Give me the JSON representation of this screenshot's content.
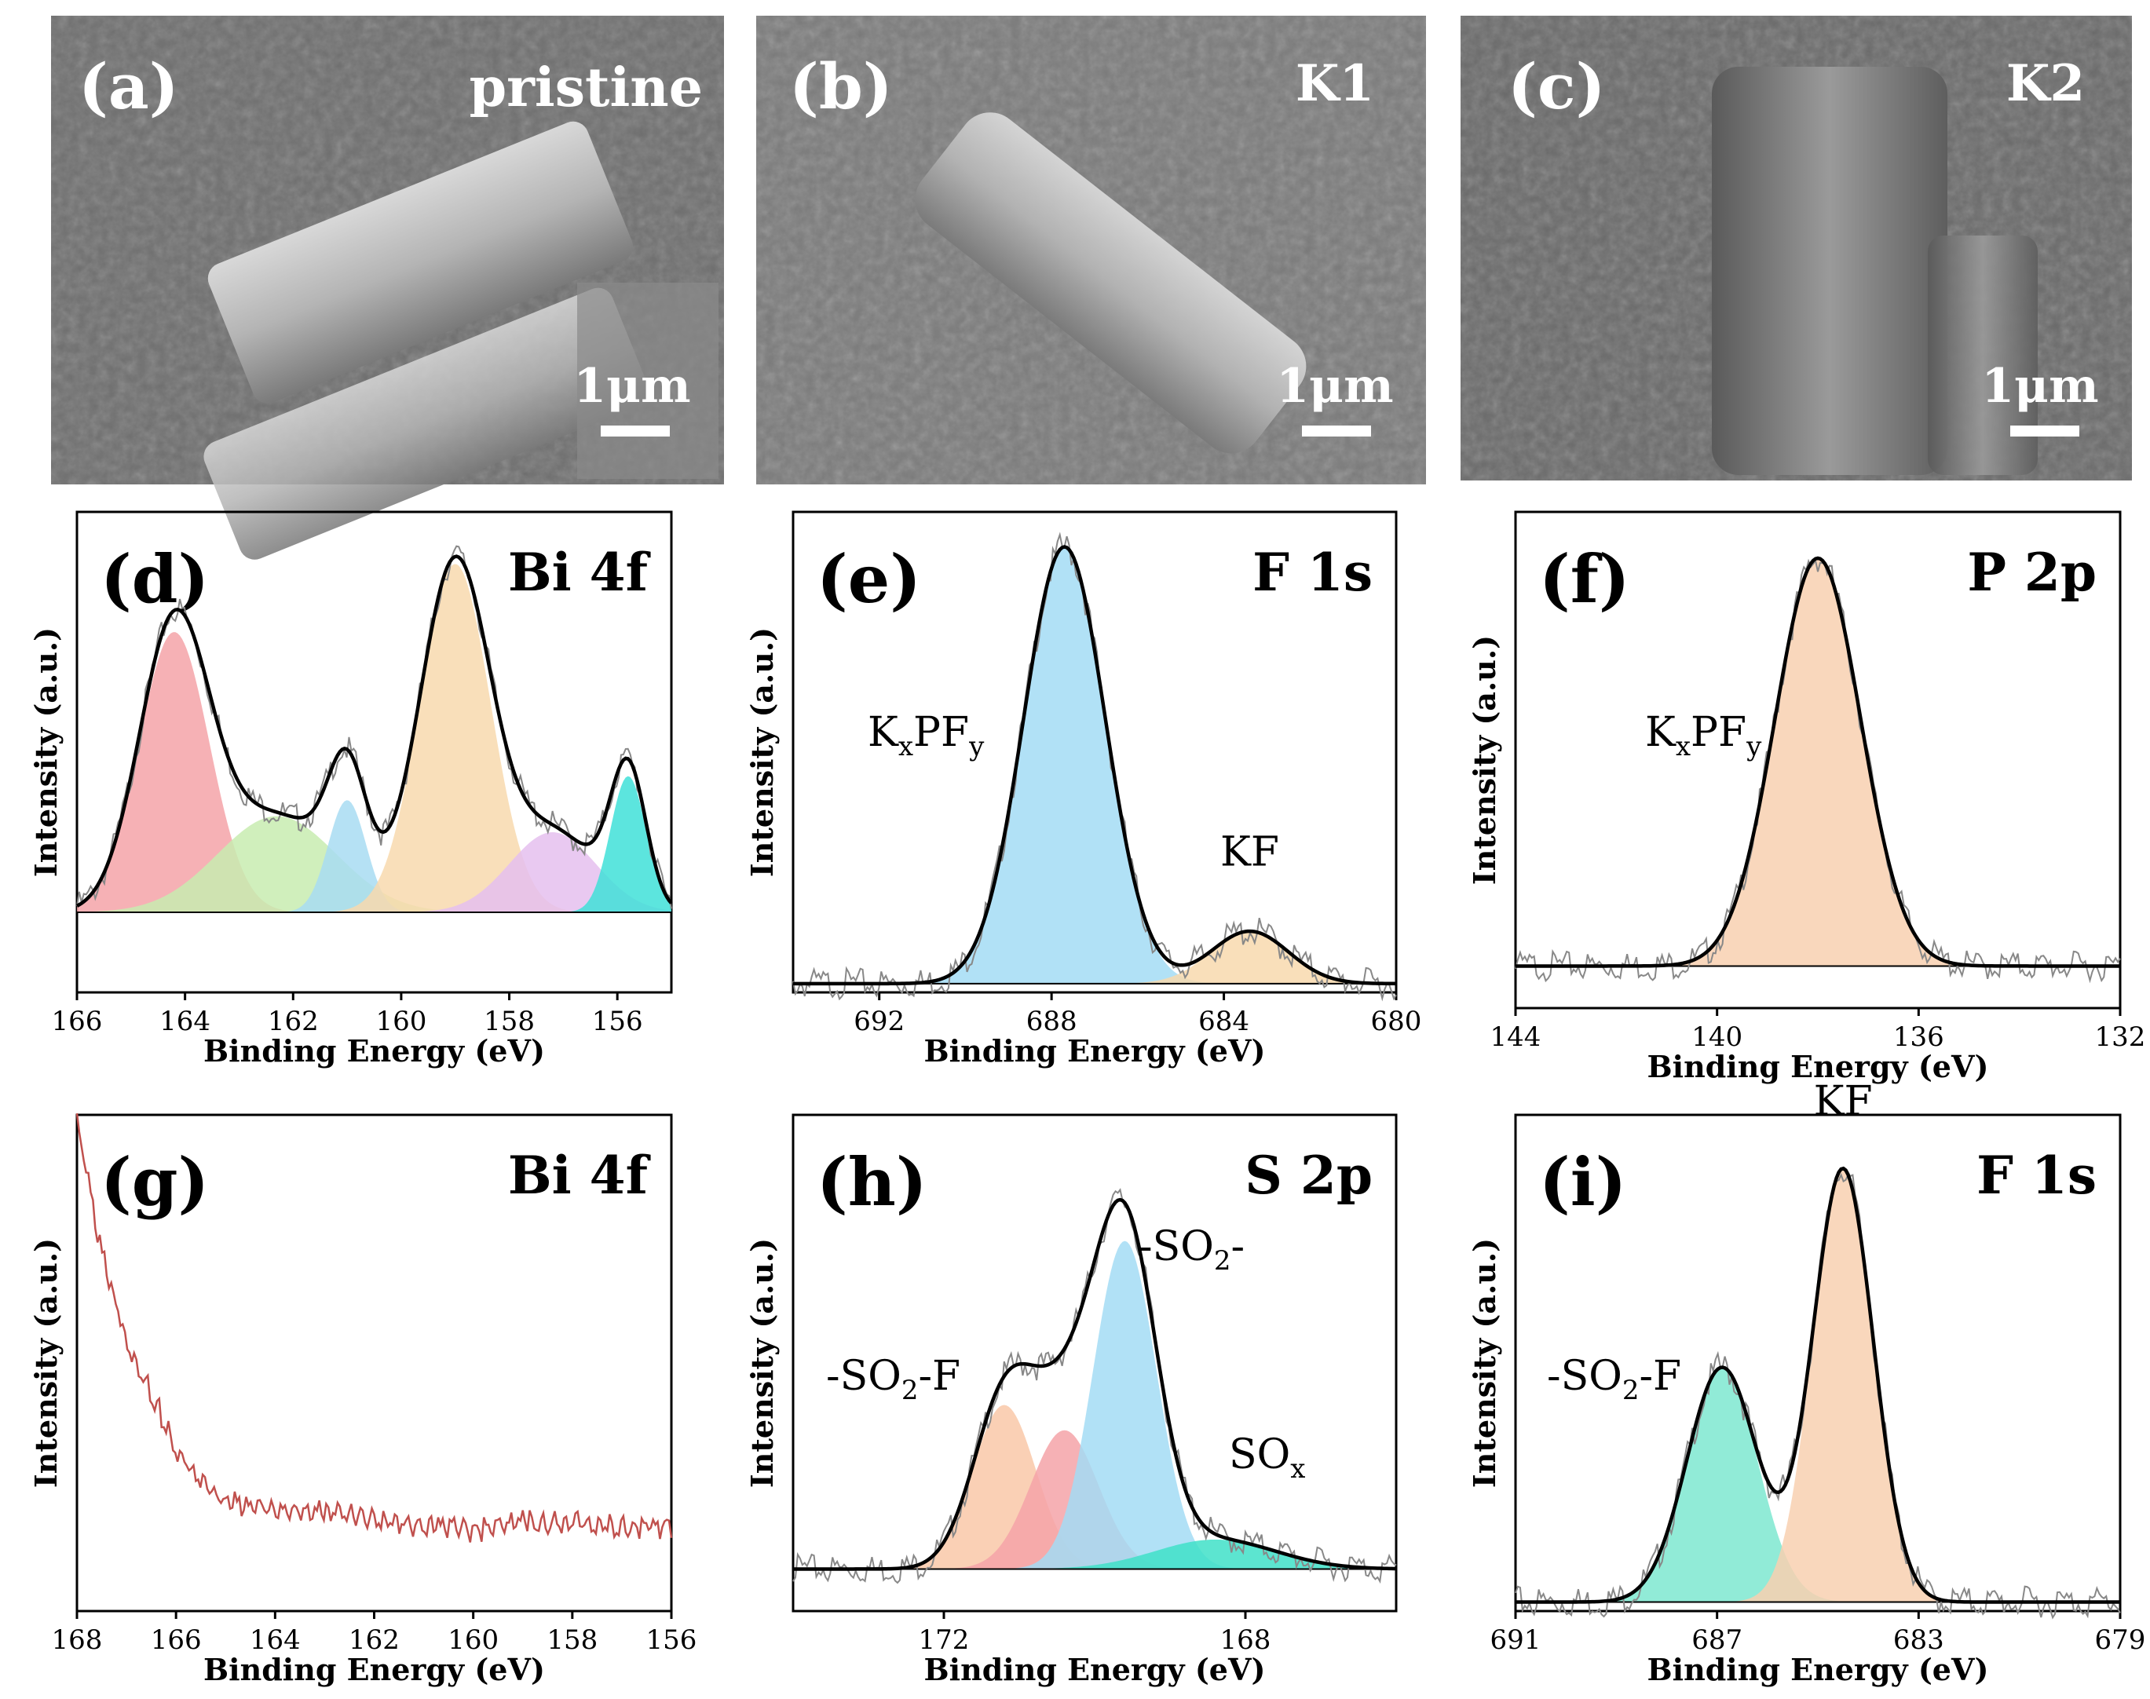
{
  "sem_panels": [
    {
      "label": "(a)",
      "sample": "pristine",
      "scale": "1μm"
    },
    {
      "label": "(b)",
      "sample": "K1",
      "scale": "1μm"
    },
    {
      "label": "(c)",
      "sample": "K2",
      "scale": "1μm"
    }
  ],
  "common": {
    "xlabel": "Binding Energy (eV)",
    "ylabel": "Intensity (a.u.)"
  },
  "chart_data": [
    {
      "type": "area",
      "panel": "(d)",
      "title": "Bi 4f",
      "xlim": [
        166,
        155
      ],
      "ticks": [
        166,
        164,
        162,
        160,
        158,
        156
      ],
      "ylim": [
        -0.2,
        1.0
      ],
      "baseline": 0.0,
      "peaks": [
        {
          "center": 164.2,
          "height": 0.7,
          "width": 0.65,
          "color": "#f4a3a8"
        },
        {
          "center": 162.3,
          "height": 0.24,
          "width": 1.1,
          "color": "#c8ecb0"
        },
        {
          "center": 161.0,
          "height": 0.28,
          "width": 0.35,
          "color": "#a8dcf2"
        },
        {
          "center": 159.0,
          "height": 0.87,
          "width": 0.65,
          "color": "#f8d9ae"
        },
        {
          "center": 157.2,
          "height": 0.2,
          "width": 0.8,
          "color": "#e5c0ee"
        },
        {
          "center": 155.8,
          "height": 0.34,
          "width": 0.33,
          "color": "#40e0d8"
        }
      ]
    },
    {
      "type": "area",
      "panel": "(e)",
      "title": "F 1s",
      "xlim": [
        694,
        680
      ],
      "ticks": [
        692,
        688,
        684,
        680
      ],
      "ylim": [
        -0.02,
        1.08
      ],
      "baseline": 0.0,
      "peaks": [
        {
          "center": 687.7,
          "height": 1.0,
          "width": 0.95,
          "color": "#a3dcf5"
        },
        {
          "center": 683.4,
          "height": 0.12,
          "width": 0.9,
          "color": "#f8d9ae"
        }
      ],
      "labels": [
        {
          "text": "KF",
          "x": 683.4,
          "y": 0.27
        }
      ]
    },
    {
      "type": "area",
      "panel": "(f)",
      "title": "P 2p",
      "xlim": [
        144,
        132
      ],
      "ticks": [
        144,
        140,
        136,
        132
      ],
      "ylim": [
        -0.1,
        1.08
      ],
      "baseline": 0.0,
      "peaks": [
        {
          "center": 138.0,
          "height": 0.97,
          "width": 0.85,
          "color": "#f8d0b0"
        }
      ]
    },
    {
      "type": "line",
      "panel": "(g)",
      "title": "Bi 4f",
      "xlim": [
        168,
        156
      ],
      "ticks": [
        168,
        166,
        164,
        162,
        160,
        158,
        156
      ],
      "ylim": [
        0,
        1.0
      ],
      "color": "#c0504d",
      "x": [
        168,
        167.5,
        167,
        166.5,
        166,
        165.5,
        165,
        164,
        163,
        162,
        161,
        160,
        159,
        158,
        157,
        156
      ],
      "y": [
        0.98,
        0.72,
        0.55,
        0.44,
        0.33,
        0.26,
        0.22,
        0.2,
        0.2,
        0.19,
        0.17,
        0.16,
        0.18,
        0.18,
        0.17,
        0.17
      ]
    },
    {
      "type": "area",
      "panel": "(h)",
      "title": "S 2p",
      "xlim": [
        174,
        166
      ],
      "ticks": [
        172,
        168
      ],
      "ylim": [
        -0.1,
        1.08
      ],
      "baseline": 0.0,
      "peaks": [
        {
          "center": 171.2,
          "height": 0.39,
          "width": 0.42,
          "color": "#f9c8a8"
        },
        {
          "center": 170.4,
          "height": 0.33,
          "width": 0.45,
          "color": "#f4a3a8"
        },
        {
          "center": 169.6,
          "height": 0.78,
          "width": 0.42,
          "color": "#a3dcf5"
        },
        {
          "center": 168.4,
          "height": 0.07,
          "width": 0.8,
          "color": "#40e0c8"
        }
      ]
    },
    {
      "type": "area",
      "panel": "(i)",
      "title": "F 1s",
      "xlim": [
        691,
        679
      ],
      "ticks": [
        691,
        687,
        683,
        679
      ],
      "ylim": [
        -0.02,
        1.08
      ],
      "baseline": 0.0,
      "peaks": [
        {
          "center": 686.9,
          "height": 0.52,
          "width": 0.7,
          "color": "#7ee8d0"
        },
        {
          "center": 684.5,
          "height": 0.96,
          "width": 0.6,
          "color": "#f8d0b0"
        }
      ],
      "labels": [
        {
          "text": "KF",
          "x": 684.5,
          "y": 1.08
        }
      ]
    }
  ],
  "rich_labels": {
    "kxpfy_e": {
      "base": "K",
      "s1": "x",
      "mid": "PF",
      "s2": "y"
    },
    "kxpfy_f": {
      "base": "K",
      "s1": "x",
      "mid": "PF",
      "s2": "y"
    },
    "so2_h": {
      "pre": "-SO",
      "sub": "2",
      "post": "-"
    },
    "so2f_h": {
      "pre": "-SO",
      "sub": "2",
      "post": "-F"
    },
    "sox_h": {
      "pre": "SO",
      "sub": "x",
      "post": ""
    },
    "so2f_i": {
      "pre": "-SO",
      "sub": "2",
      "post": "-F"
    }
  }
}
